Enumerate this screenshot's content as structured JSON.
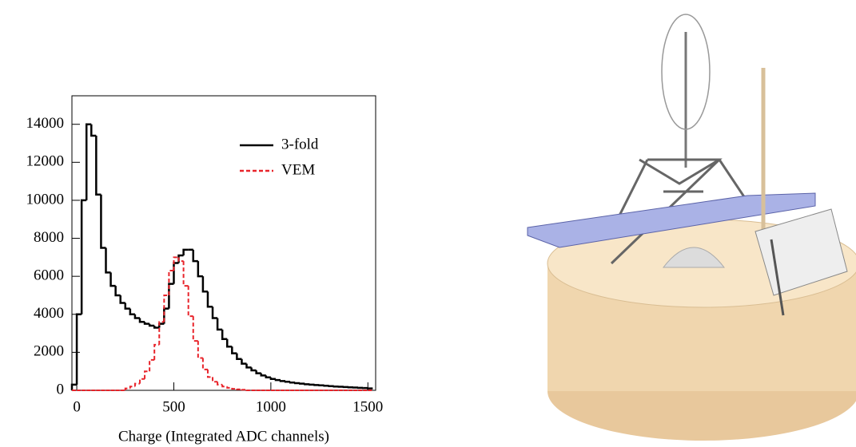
{
  "chart_data": {
    "type": "histogram",
    "x_label": "Charge (Integrated ADC channels)",
    "bins": [
      -25,
      0,
      25,
      50,
      75,
      100,
      125,
      150,
      175,
      200,
      225,
      250,
      275,
      300,
      325,
      350,
      375,
      400,
      425,
      450,
      475,
      500,
      525,
      550,
      575,
      600,
      625,
      650,
      675,
      700,
      725,
      750,
      775,
      800,
      825,
      850,
      875,
      900,
      925,
      950,
      975,
      1000,
      1025,
      1050,
      1075,
      1100,
      1125,
      1150,
      1175,
      1200,
      1225,
      1250,
      1275,
      1300,
      1325,
      1350,
      1375,
      1400,
      1425,
      1450,
      1475,
      1500,
      1525
    ],
    "series": [
      {
        "name": "3-fold",
        "color": "#000000",
        "dash": false,
        "values": [
          300,
          4000,
          10000,
          14000,
          13400,
          10300,
          7500,
          6200,
          5500,
          5000,
          4600,
          4300,
          4000,
          3800,
          3600,
          3500,
          3400,
          3300,
          3500,
          4300,
          5600,
          6700,
          7100,
          7400,
          7400,
          6800,
          6000,
          5200,
          4400,
          3800,
          3200,
          2700,
          2300,
          1950,
          1650,
          1400,
          1200,
          1050,
          900,
          780,
          680,
          600,
          540,
          490,
          450,
          410,
          380,
          350,
          320,
          300,
          280,
          260,
          240,
          220,
          200,
          190,
          175,
          160,
          145,
          130,
          120,
          100
        ]
      },
      {
        "name": "VEM",
        "color": "#e8242b",
        "dash": true,
        "values": [
          0,
          0,
          0,
          0,
          0,
          0,
          0,
          0,
          0,
          0,
          0,
          100,
          200,
          350,
          600,
          1000,
          1600,
          2400,
          3600,
          5000,
          6300,
          7000,
          6800,
          5500,
          3900,
          2600,
          1700,
          1100,
          700,
          450,
          300,
          200,
          130,
          80,
          50,
          30,
          0,
          0,
          0,
          0,
          0,
          0,
          0,
          0,
          0,
          0,
          0,
          0,
          0,
          0,
          0,
          0,
          0,
          0,
          0,
          0,
          0,
          0,
          0,
          0,
          0,
          0
        ]
      }
    ],
    "xlim": [
      -25,
      1540
    ],
    "xticks": [
      0,
      500,
      1000,
      1500
    ],
    "ylim": [
      0,
      15500
    ],
    "yticks": [
      0,
      2000,
      4000,
      6000,
      8000,
      10000,
      12000,
      14000
    ],
    "legend": "upper right"
  }
}
